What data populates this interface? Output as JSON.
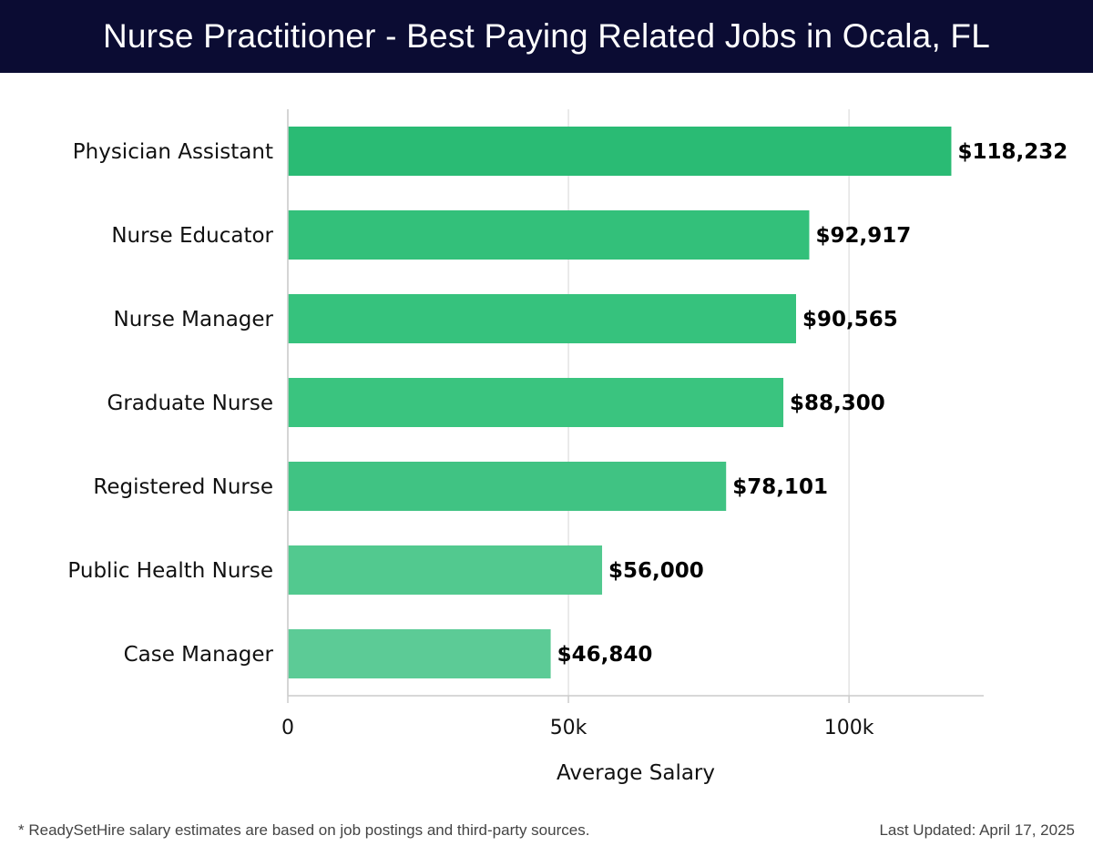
{
  "header": {
    "title": "Nurse Practitioner - Best Paying Related Jobs in Ocala, FL"
  },
  "chart_data": {
    "type": "bar",
    "orientation": "horizontal",
    "title": "Nurse Practitioner - Best Paying Related Jobs in Ocala, FL",
    "categories": [
      "Physician Assistant",
      "Nurse Educator",
      "Nurse Manager",
      "Graduate Nurse",
      "Registered Nurse",
      "Public Health Nurse",
      "Case Manager"
    ],
    "values": [
      118232,
      92917,
      90565,
      88300,
      78101,
      56000,
      46840
    ],
    "value_labels": [
      "$118,232",
      "$92,917",
      "$90,565",
      "$88,300",
      "$78,101",
      "$56,000",
      "$46,840"
    ],
    "xlabel": "Average Salary",
    "ylabel": "",
    "xlim": [
      0,
      124000
    ],
    "xticks": [
      0,
      50000,
      100000
    ],
    "xtick_labels": [
      "0",
      "50k",
      "100k"
    ],
    "grid": "vertical",
    "bar_colors": [
      "#2abb74",
      "#33c07a",
      "#36c27d",
      "#3ac47f",
      "#40c383",
      "#52c98f",
      "#5ccb96"
    ]
  },
  "footer": {
    "note": "* ReadySetHire salary estimates are based on job postings and third-party sources.",
    "updated": "Last Updated: April 17, 2025"
  }
}
